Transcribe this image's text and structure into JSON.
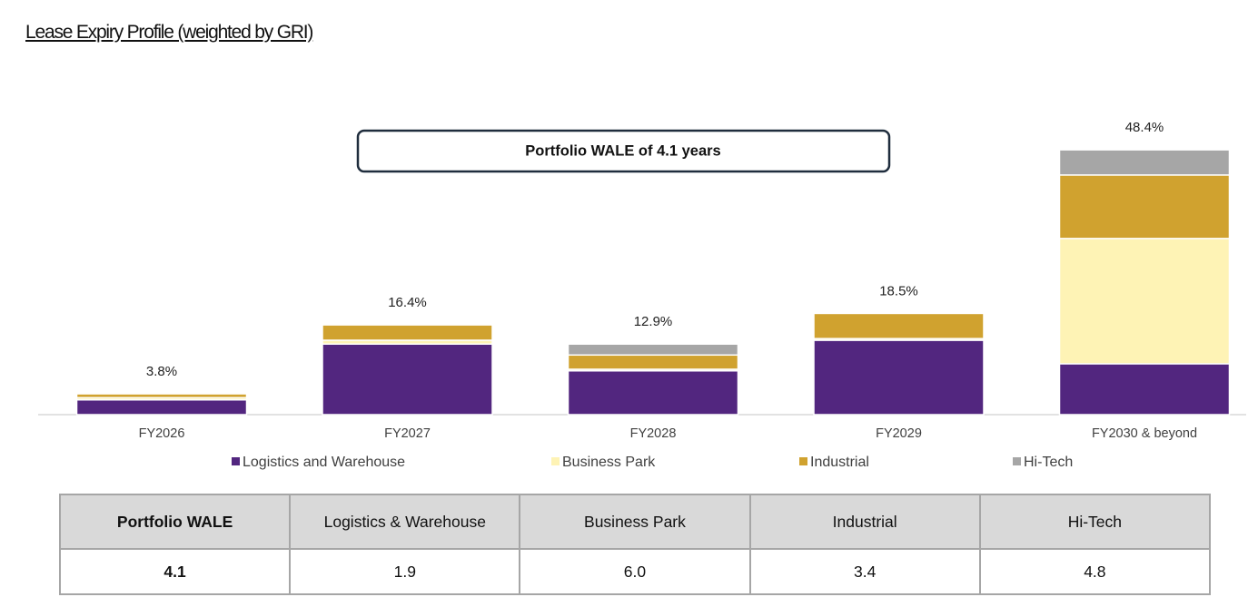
{
  "title": "Lease Expiry Profile (weighted by GRI)",
  "chart_data": {
    "type": "stacked-bar",
    "annotation": "Portfolio WALE of 4.1 years",
    "categories": [
      "FY2026",
      "FY2027",
      "FY2028",
      "FY2029",
      "FY2030 & beyond"
    ],
    "series": [
      {
        "name": "Logistics and Warehouse",
        "color": "#52267f",
        "values": [
          2.7,
          12.9,
          8.0,
          13.6,
          9.3
        ]
      },
      {
        "name": "Business Park",
        "color": "#fef3b5",
        "values": [
          0.4,
          0.7,
          0.3,
          0.3,
          22.9
        ]
      },
      {
        "name": "Industrial",
        "color": "#d0a22f",
        "values": [
          0.7,
          2.8,
          2.6,
          4.6,
          11.6
        ]
      },
      {
        "name": "Hi-Tech",
        "color": "#a6a6a6",
        "values": [
          0,
          0,
          2.0,
          0,
          4.6
        ]
      }
    ],
    "totals": [
      3.8,
      16.4,
      12.9,
      18.5,
      48.4
    ],
    "total_labels": [
      "3.8%",
      "16.4%",
      "12.9%",
      "18.5%",
      "48.4%"
    ]
  },
  "table": {
    "header": [
      "Portfolio WALE",
      "Logistics & Warehouse",
      "Business Park",
      "Industrial",
      "Hi-Tech"
    ],
    "rows": [
      [
        "4.1",
        "1.9",
        "6.0",
        "3.4",
        "4.8"
      ]
    ]
  }
}
